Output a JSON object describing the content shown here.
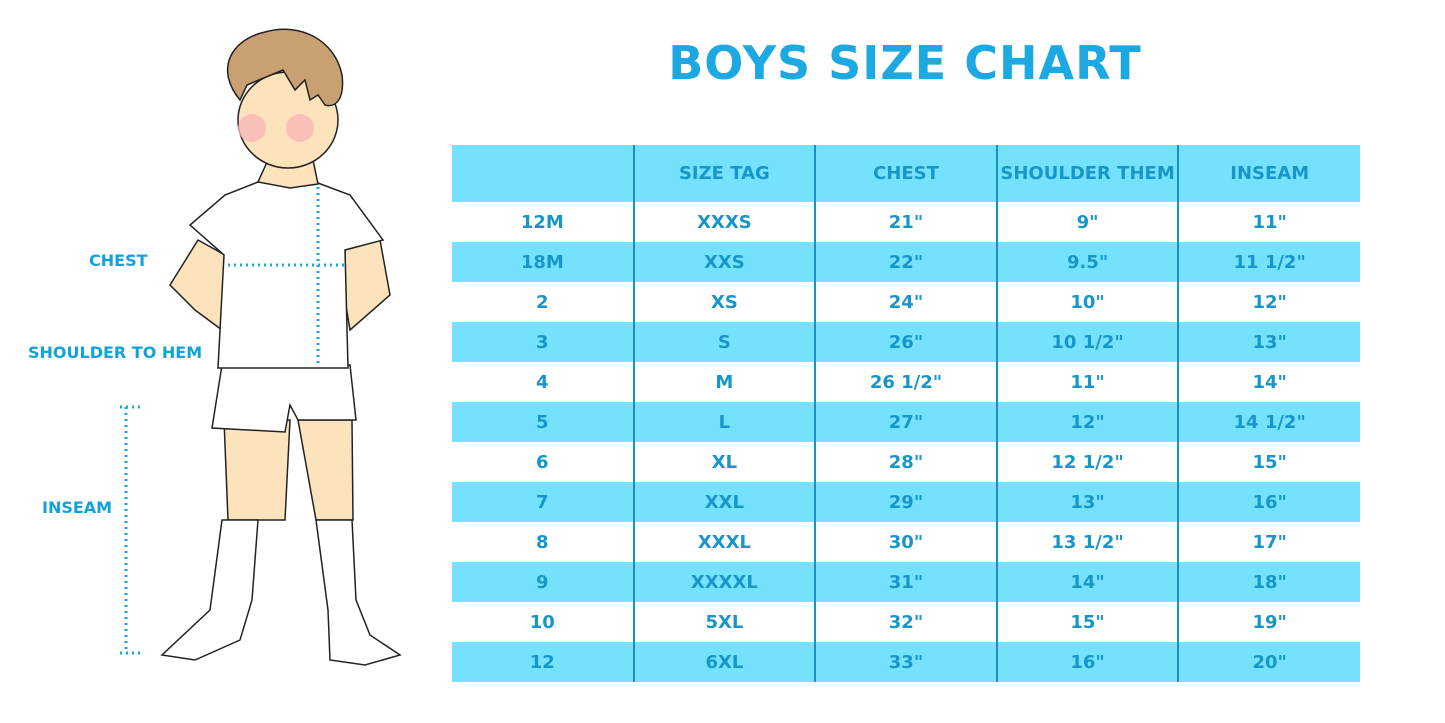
{
  "title": "BOYS SIZE CHART",
  "figure_labels": {
    "chest": "CHEST",
    "shoulder": "SHOULDER TO HEM",
    "inseam": "INSEAM"
  },
  "table": {
    "headers": [
      "",
      "SIZE TAG",
      "CHEST",
      "SHOULDER THEM",
      "INSEAM"
    ],
    "rows": [
      [
        "12M",
        "XXXS",
        "21\"",
        "9\"",
        "11\""
      ],
      [
        "18M",
        "XXS",
        "22\"",
        "9.5\"",
        "11 1/2\""
      ],
      [
        "2",
        "XS",
        "24\"",
        "10\"",
        "12\""
      ],
      [
        "3",
        "S",
        "26\"",
        "10 1/2\"",
        "13\""
      ],
      [
        "4",
        "M",
        "26 1/2\"",
        "11\"",
        "14\""
      ],
      [
        "5",
        "L",
        "27\"",
        "12\"",
        "14 1/2\""
      ],
      [
        "6",
        "XL",
        "28\"",
        "12 1/2\"",
        "15\""
      ],
      [
        "7",
        "XXL",
        "29\"",
        "13\"",
        "16\""
      ],
      [
        "8",
        "XXXL",
        "30\"",
        "13 1/2\"",
        "17\""
      ],
      [
        "9",
        "XXXXL",
        "31\"",
        "14\"",
        "18\""
      ],
      [
        "10",
        "5XL",
        "32\"",
        "15\"",
        "19\""
      ],
      [
        "12",
        "6XL",
        "33\"",
        "16\"",
        "20\""
      ]
    ]
  },
  "colors": {
    "accent": "#1ca8e0",
    "stripe": "#74e2fc",
    "text": "#1896c9"
  }
}
